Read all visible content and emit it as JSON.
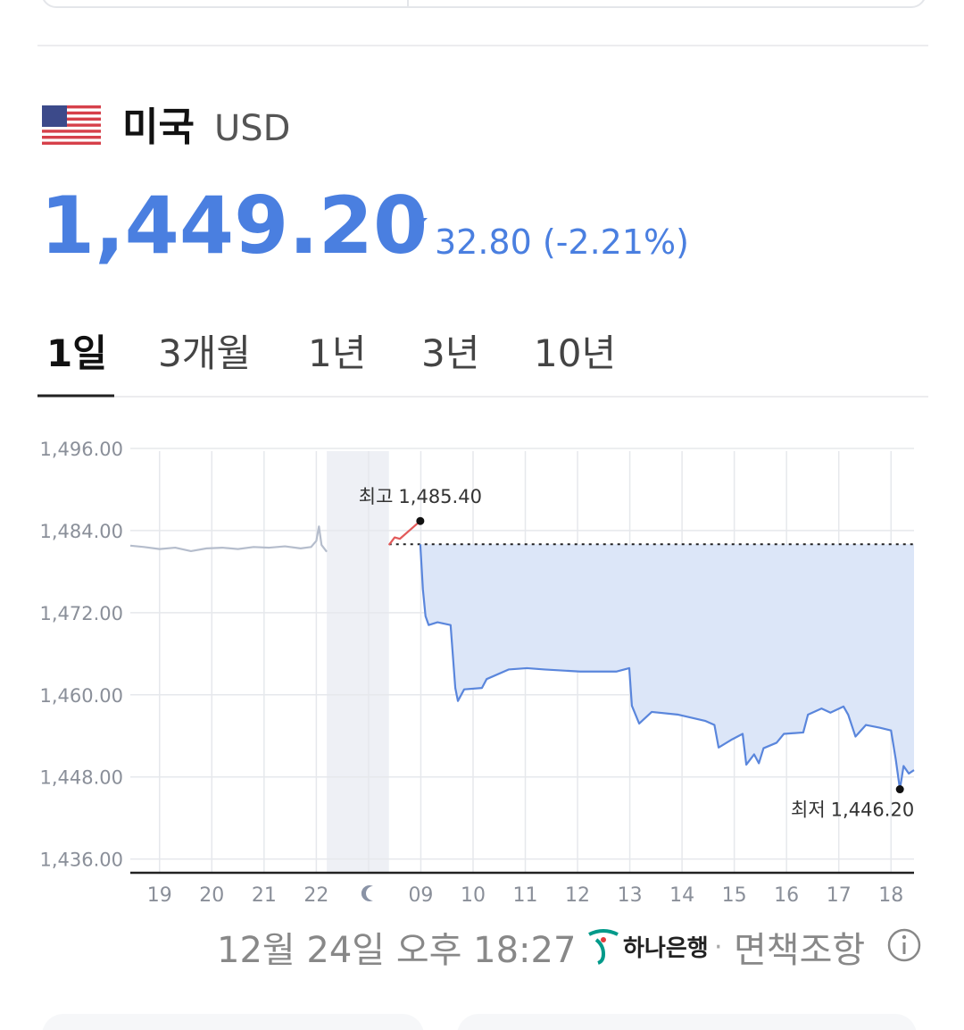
{
  "header": {
    "country": "미국",
    "currency": "USD",
    "price": "1,449.20",
    "change": "32.80 (-2.21%)"
  },
  "tabs": [
    "1일",
    "3개월",
    "1년",
    "3년",
    "10년"
  ],
  "chart_data": {
    "type": "line",
    "categories": [
      "19",
      "20",
      "21",
      "22",
      null,
      "09",
      "10",
      "11",
      "12",
      "13",
      "14",
      "15",
      "16",
      "17",
      "18"
    ],
    "xlim": [
      -0.56,
      14.44
    ],
    "ylim": [
      1434,
      1496
    ],
    "yticks": [
      {
        "value": 1436,
        "label": "1,436.00"
      },
      {
        "value": 1448,
        "label": "1,448.00"
      },
      {
        "value": 1460,
        "label": "1,460.00"
      },
      {
        "value": 1472,
        "label": "1,472.00"
      },
      {
        "value": 1484,
        "label": "1,484.00"
      },
      {
        "value": 1496,
        "label": "1,496.00"
      }
    ],
    "grid": true,
    "reference": 1482,
    "shade_color": "#eef0f5",
    "series": [
      {
        "color": "#b5bdcc",
        "x": [
          -0.56,
          -0.3,
          0,
          0.3,
          0.6,
          0.9,
          1.2,
          1.5,
          1.8,
          2.1,
          2.4,
          2.7,
          2.9,
          3.0,
          3.05,
          3.1,
          3.2
        ],
        "values": [
          1481.8,
          1481.6,
          1481.3,
          1481.5,
          1481.0,
          1481.4,
          1481.5,
          1481.3,
          1481.6,
          1481.5,
          1481.7,
          1481.4,
          1481.6,
          1482.5,
          1484.6,
          1481.9,
          1480.9
        ]
      },
      {
        "color": "#e25a5a",
        "x": [
          4.39,
          4.5,
          4.6,
          4.99
        ],
        "values": [
          1481.9,
          1483.0,
          1482.8,
          1485.4
        ]
      },
      {
        "color": "#5a86dc",
        "area_color": "#dce6f8",
        "x": [
          4.99,
          5.04,
          5.09,
          5.15,
          5.32,
          5.57,
          5.66,
          5.71,
          5.83,
          6.17,
          6.26,
          6.68,
          7.03,
          7.37,
          8.05,
          8.74,
          8.99,
          9.04,
          9.18,
          9.42,
          9.93,
          10.44,
          10.62,
          10.7,
          10.96,
          11.16,
          11.23,
          11.38,
          11.47,
          11.56,
          11.81,
          11.95,
          12.32,
          12.41,
          12.67,
          12.84,
          13.09,
          13.18,
          13.32,
          13.52,
          13.78,
          14.0,
          14.09,
          14.17,
          14.24,
          14.34,
          14.44
        ],
        "values": [
          1482,
          1475.4,
          1471.5,
          1470.2,
          1470.6,
          1470.2,
          1461.0,
          1459.1,
          1460.8,
          1461.0,
          1462.3,
          1463.7,
          1463.9,
          1463.7,
          1463.4,
          1463.4,
          1463.9,
          1458.4,
          1455.8,
          1457.5,
          1457.1,
          1456.2,
          1455.6,
          1452.3,
          1453.5,
          1454.3,
          1449.8,
          1451.3,
          1450.0,
          1452.2,
          1453.0,
          1454.3,
          1454.5,
          1457.1,
          1458.0,
          1457.4,
          1458.3,
          1457.1,
          1453.9,
          1455.6,
          1455.2,
          1454.8,
          1450.6,
          1446.2,
          1449.6,
          1448.5,
          1449.0
        ]
      }
    ],
    "annotations": [
      {
        "label": "최고",
        "value": 1485.4,
        "value_label": "1,485.40",
        "x": 4.99
      },
      {
        "label": "최저",
        "value": 1446.2,
        "value_label": "1,446.20",
        "x": 14.17
      }
    ]
  },
  "footer": {
    "timestamp": "12월 24일 오후 18:27",
    "bank": "하나은행",
    "separator": "·",
    "disclaimer": "면책조항"
  }
}
